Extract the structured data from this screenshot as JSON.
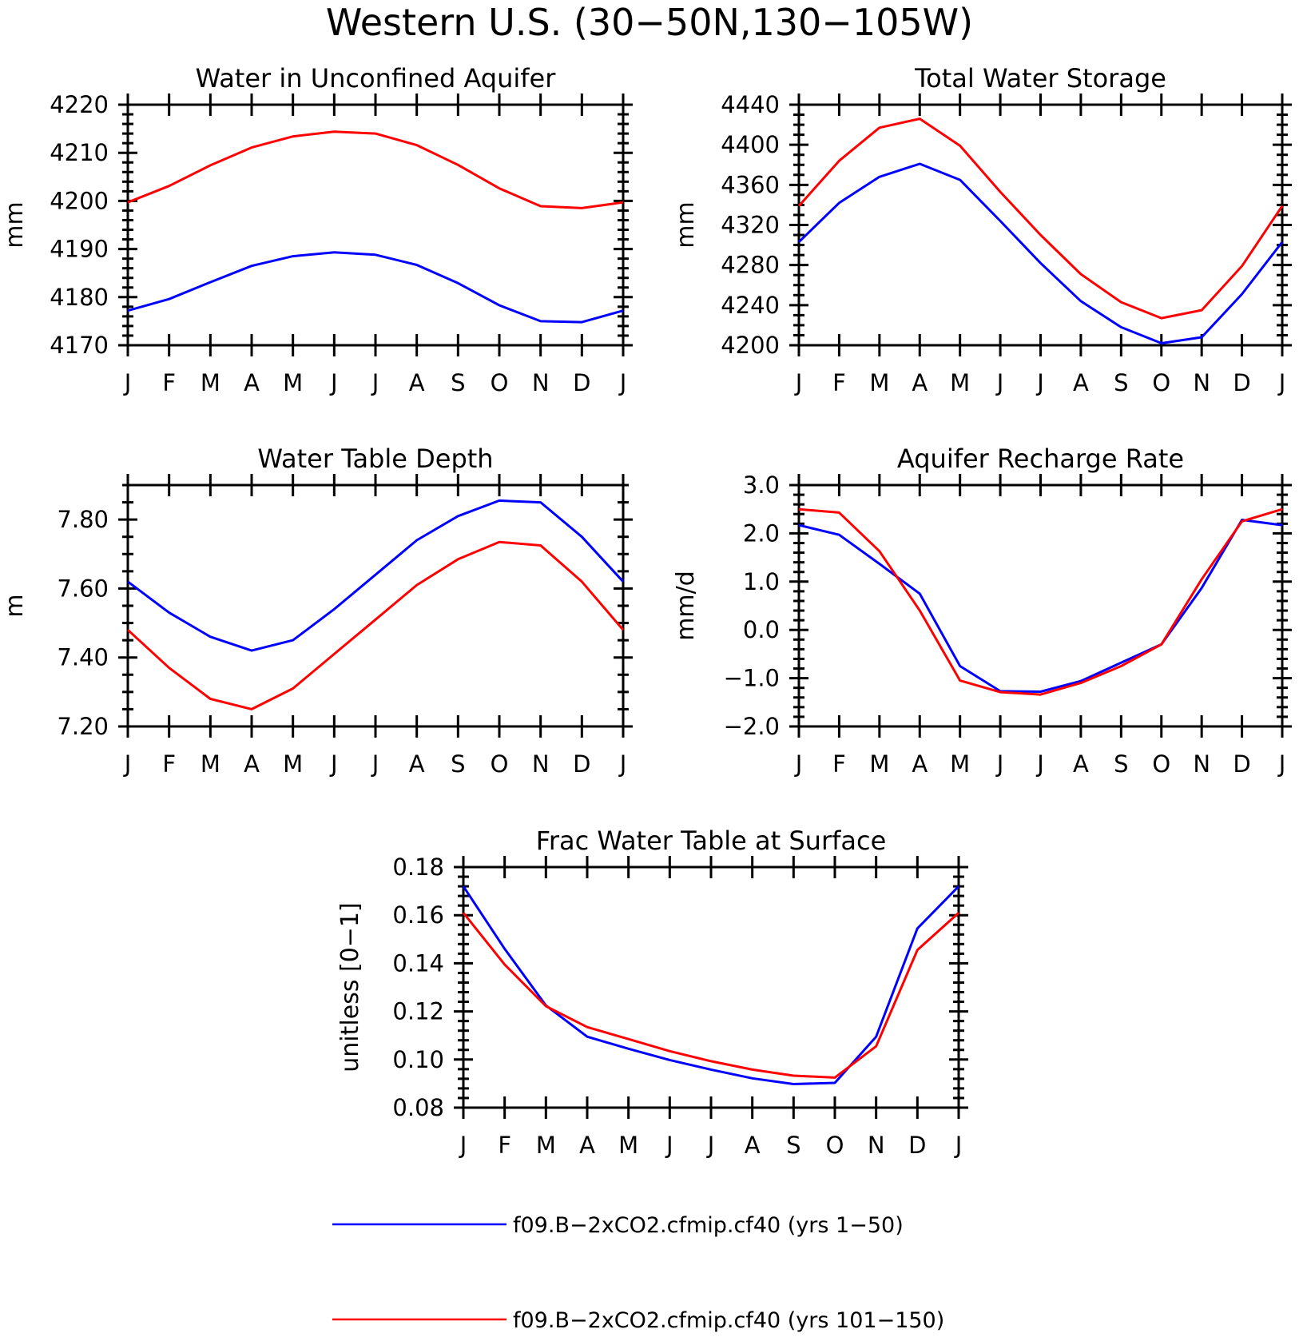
{
  "figure": {
    "title": "Western U.S. (30−50N,130−105W)"
  },
  "colors": {
    "blue": "#0000ff",
    "red": "#ff0000"
  },
  "legend": [
    {
      "label": "f09.B−2xCO2.cfmip.cf40 (yrs 1−50)",
      "color": "#0000ff"
    },
    {
      "label": "f09.B−2xCO2.cfmip.cf40 (yrs 101−150)",
      "color": "#ff0000"
    }
  ],
  "chart_data": [
    {
      "type": "line",
      "title": "Water in Unconfined Aquifer",
      "ylabel": "mm",
      "categories": [
        "J",
        "F",
        "M",
        "A",
        "M",
        "J",
        "J",
        "A",
        "S",
        "O",
        "N",
        "D",
        "J"
      ],
      "ylim": [
        4170,
        4220
      ],
      "yticks": [
        4170,
        4180,
        4190,
        4200,
        4210,
        4220
      ],
      "ytick_labels": [
        "4170",
        "4180",
        "4190",
        "4200",
        "4210",
        "4220"
      ],
      "yminor": 2,
      "series": [
        {
          "color": "#0000ff",
          "values": [
            4177.2,
            4179.6,
            4183.1,
            4186.5,
            4188.5,
            4189.3,
            4188.8,
            4186.7,
            4182.9,
            4178.3,
            4175.0,
            4174.8,
            4177.2
          ]
        },
        {
          "color": "#ff0000",
          "values": [
            4199.7,
            4203.1,
            4207.4,
            4211.1,
            4213.4,
            4214.4,
            4214.0,
            4211.6,
            4207.5,
            4202.6,
            4198.9,
            4198.5,
            4199.7
          ]
        }
      ]
    },
    {
      "type": "line",
      "title": "Total Water Storage",
      "ylabel": "mm",
      "categories": [
        "J",
        "F",
        "M",
        "A",
        "M",
        "J",
        "J",
        "A",
        "S",
        "O",
        "N",
        "D",
        "J"
      ],
      "ylim": [
        4200,
        4440
      ],
      "yticks": [
        4200,
        4240,
        4280,
        4320,
        4360,
        4400,
        4440
      ],
      "ytick_labels": [
        "4200",
        "4240",
        "4280",
        "4320",
        "4360",
        "4400",
        "4440"
      ],
      "yminor": 10,
      "series": [
        {
          "color": "#0000ff",
          "values": [
            4303,
            4342,
            4368,
            4381,
            4365,
            4324,
            4282,
            4244,
            4218,
            4202,
            4208,
            4251,
            4303
          ]
        },
        {
          "color": "#ff0000",
          "values": [
            4339,
            4384,
            4417,
            4426,
            4399,
            4353,
            4310,
            4271,
            4243,
            4227,
            4235,
            4279,
            4339
          ]
        }
      ]
    },
    {
      "type": "line",
      "title": "Water Table Depth",
      "ylabel": "m",
      "categories": [
        "J",
        "F",
        "M",
        "A",
        "M",
        "J",
        "J",
        "A",
        "S",
        "O",
        "N",
        "D",
        "J"
      ],
      "ylim": [
        7.2,
        7.9
      ],
      "yticks": [
        7.2,
        7.4,
        7.6,
        7.8
      ],
      "ytick_labels": [
        "7.20",
        "7.40",
        "7.60",
        "7.80"
      ],
      "yminor": 0.05,
      "series": [
        {
          "color": "#0000ff",
          "values": [
            7.62,
            7.53,
            7.46,
            7.42,
            7.45,
            7.54,
            7.64,
            7.74,
            7.81,
            7.855,
            7.85,
            7.75,
            7.62
          ]
        },
        {
          "color": "#ff0000",
          "values": [
            7.48,
            7.37,
            7.28,
            7.25,
            7.31,
            7.41,
            7.51,
            7.61,
            7.685,
            7.735,
            7.725,
            7.62,
            7.48
          ]
        }
      ]
    },
    {
      "type": "line",
      "title": "Aquifer Recharge Rate",
      "ylabel": "mm/d",
      "categories": [
        "J",
        "F",
        "M",
        "A",
        "M",
        "J",
        "J",
        "A",
        "S",
        "O",
        "N",
        "D",
        "J"
      ],
      "ylim": [
        -2.0,
        3.0
      ],
      "yticks": [
        -2.0,
        -1.0,
        0.0,
        1.0,
        2.0,
        3.0
      ],
      "ytick_labels": [
        "−2.0",
        "−1.0",
        "0.0",
        "1.0",
        "2.0",
        "3.0"
      ],
      "yminor": 0.2,
      "series": [
        {
          "color": "#0000ff",
          "values": [
            2.17,
            1.97,
            1.37,
            0.75,
            -0.75,
            -1.27,
            -1.28,
            -1.06,
            -0.68,
            -0.3,
            0.87,
            2.28,
            2.17
          ]
        },
        {
          "color": "#ff0000",
          "values": [
            2.5,
            2.43,
            1.63,
            0.4,
            -1.05,
            -1.29,
            -1.34,
            -1.1,
            -0.75,
            -0.3,
            1.05,
            2.25,
            2.5
          ]
        }
      ]
    },
    {
      "type": "line",
      "title": "Frac Water Table at Surface",
      "ylabel": "unitless [0−1]",
      "categories": [
        "J",
        "F",
        "M",
        "A",
        "M",
        "J",
        "J",
        "A",
        "S",
        "O",
        "N",
        "D",
        "J"
      ],
      "ylim": [
        0.08,
        0.18
      ],
      "yticks": [
        0.08,
        0.1,
        0.12,
        0.14,
        0.16,
        0.18
      ],
      "ytick_labels": [
        "0.08",
        "0.10",
        "0.12",
        "0.14",
        "0.16",
        "0.18"
      ],
      "yminor": 0.004,
      "series": [
        {
          "color": "#0000ff",
          "values": [
            0.172,
            0.146,
            0.1225,
            0.1095,
            0.1045,
            0.0998,
            0.0958,
            0.0922,
            0.0898,
            0.0903,
            0.1095,
            0.1545,
            0.172
          ]
        },
        {
          "color": "#ff0000",
          "values": [
            0.161,
            0.1395,
            0.1222,
            0.1135,
            0.1085,
            0.1035,
            0.0993,
            0.0958,
            0.0933,
            0.0925,
            0.1055,
            0.1455,
            0.161
          ]
        }
      ]
    }
  ]
}
